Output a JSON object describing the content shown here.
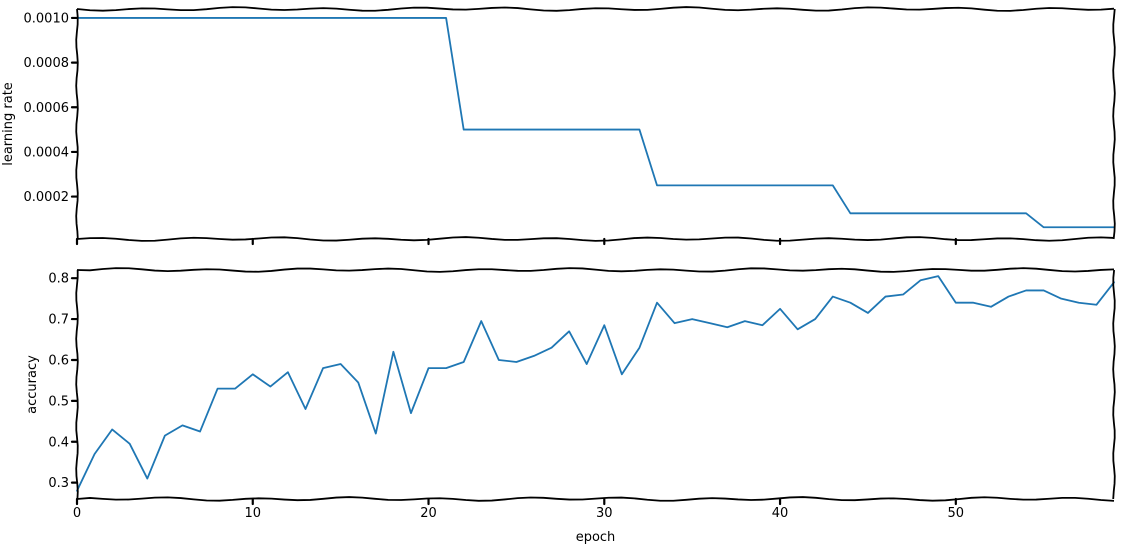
{
  "chart_data": [
    {
      "type": "line",
      "ylabel": "learning rate",
      "xlim": [
        0,
        59
      ],
      "ylim": [
        1e-05,
        0.00104
      ],
      "yticks": [
        0.0002,
        0.0004,
        0.0006,
        0.0008,
        0.001
      ],
      "ytick_labels": [
        "0.0002",
        "0.0004",
        "0.0006",
        "0.0008",
        "0.0010"
      ],
      "xticks": [
        0,
        10,
        20,
        30,
        40,
        50
      ],
      "show_xtick_labels": false,
      "grid": false,
      "series": [
        {
          "color": "#1f77b4",
          "x": [
            0,
            1,
            2,
            3,
            4,
            5,
            6,
            7,
            8,
            9,
            10,
            11,
            12,
            13,
            14,
            15,
            16,
            17,
            18,
            19,
            20,
            21,
            22,
            23,
            24,
            25,
            26,
            27,
            28,
            29,
            30,
            31,
            32,
            33,
            34,
            35,
            36,
            37,
            38,
            39,
            40,
            41,
            42,
            43,
            44,
            45,
            46,
            47,
            48,
            49,
            50,
            51,
            52,
            53,
            54,
            55,
            56,
            57,
            58,
            59
          ],
          "values": [
            0.001,
            0.001,
            0.001,
            0.001,
            0.001,
            0.001,
            0.001,
            0.001,
            0.001,
            0.001,
            0.001,
            0.001,
            0.001,
            0.001,
            0.001,
            0.001,
            0.001,
            0.001,
            0.001,
            0.001,
            0.001,
            0.001,
            0.0005,
            0.0005,
            0.0005,
            0.0005,
            0.0005,
            0.0005,
            0.0005,
            0.0005,
            0.0005,
            0.0005,
            0.0005,
            0.00025,
            0.00025,
            0.00025,
            0.00025,
            0.00025,
            0.00025,
            0.00025,
            0.00025,
            0.00025,
            0.00025,
            0.00025,
            0.000125,
            0.000125,
            0.000125,
            0.000125,
            0.000125,
            0.000125,
            0.000125,
            0.000125,
            0.000125,
            0.000125,
            0.000125,
            6.25e-05,
            6.25e-05,
            6.25e-05,
            6.25e-05,
            6.25e-05
          ]
        }
      ]
    },
    {
      "type": "line",
      "xlabel": "epoch",
      "ylabel": "accuracy",
      "xlim": [
        0,
        59
      ],
      "ylim": [
        0.26,
        0.82
      ],
      "yticks": [
        0.3,
        0.4,
        0.5,
        0.6,
        0.7,
        0.8
      ],
      "ytick_labels": [
        "0.3",
        "0.4",
        "0.5",
        "0.6",
        "0.7",
        "0.8"
      ],
      "xticks": [
        0,
        10,
        20,
        30,
        40,
        50
      ],
      "xtick_labels": [
        "0",
        "10",
        "20",
        "30",
        "40",
        "50"
      ],
      "grid": false,
      "series": [
        {
          "color": "#1f77b4",
          "x": [
            0,
            1,
            2,
            3,
            4,
            5,
            6,
            7,
            8,
            9,
            10,
            11,
            12,
            13,
            14,
            15,
            16,
            17,
            18,
            19,
            20,
            21,
            22,
            23,
            24,
            25,
            26,
            27,
            28,
            29,
            30,
            31,
            32,
            33,
            34,
            35,
            36,
            37,
            38,
            39,
            40,
            41,
            42,
            43,
            44,
            45,
            46,
            47,
            48,
            49,
            50,
            51,
            52,
            53,
            54,
            55,
            56,
            57,
            58,
            59
          ],
          "values": [
            0.28,
            0.37,
            0.43,
            0.395,
            0.31,
            0.415,
            0.44,
            0.425,
            0.53,
            0.53,
            0.565,
            0.535,
            0.57,
            0.48,
            0.58,
            0.59,
            0.545,
            0.42,
            0.62,
            0.47,
            0.58,
            0.58,
            0.595,
            0.695,
            0.6,
            0.595,
            0.61,
            0.63,
            0.67,
            0.59,
            0.685,
            0.565,
            0.63,
            0.74,
            0.69,
            0.7,
            0.69,
            0.68,
            0.695,
            0.685,
            0.725,
            0.675,
            0.7,
            0.755,
            0.74,
            0.715,
            0.755,
            0.76,
            0.795,
            0.805,
            0.74,
            0.74,
            0.73,
            0.755,
            0.77,
            0.77,
            0.75,
            0.74,
            0.735,
            0.79
          ]
        }
      ]
    }
  ]
}
